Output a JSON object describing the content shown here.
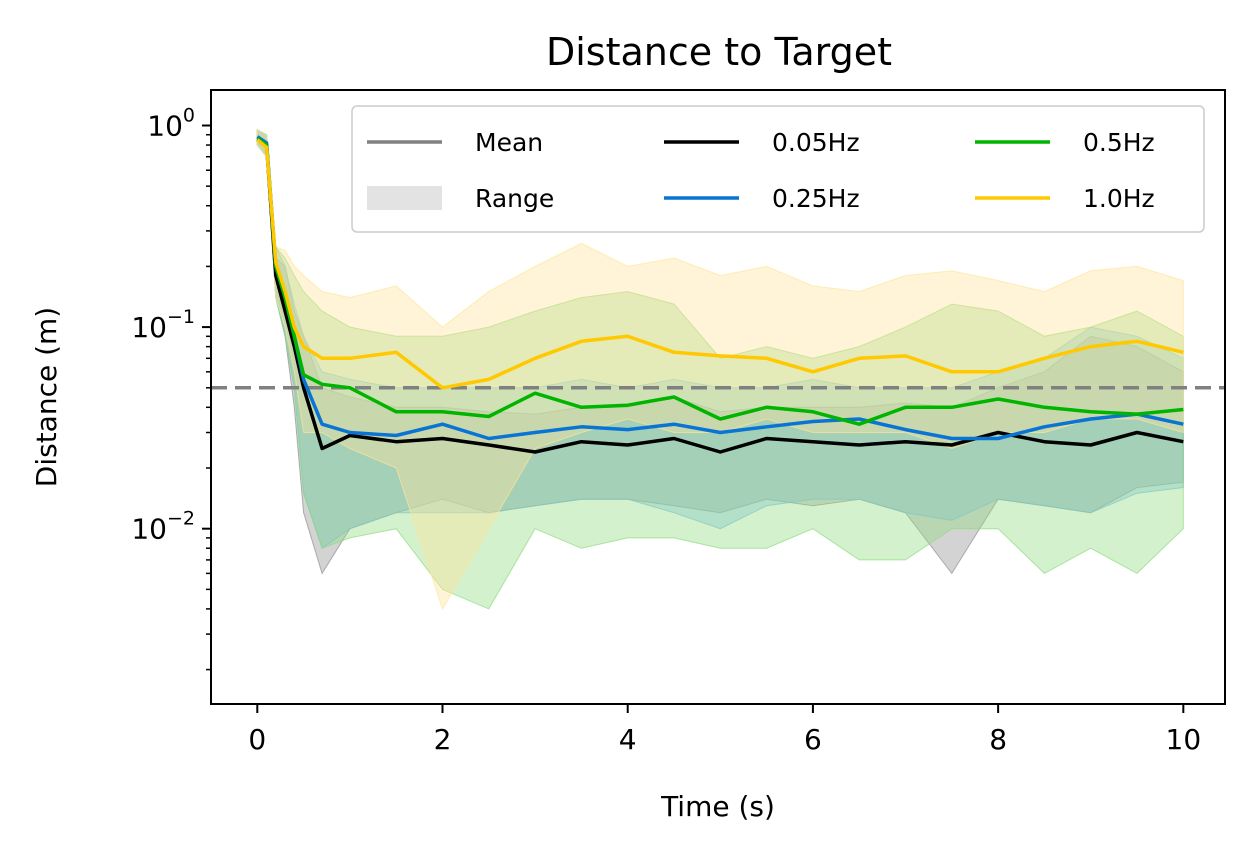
{
  "chart_data": {
    "type": "line",
    "title": "Distance to Target",
    "xlabel": "Time (s)",
    "ylabel": "Distance (m)",
    "xlim": [
      -0.5,
      10.45
    ],
    "ylim": [
      0.00135,
      1.5
    ],
    "yscale": "log",
    "grid": false,
    "legend_position": "top-right",
    "x_ticks": [
      0,
      2,
      4,
      6,
      8,
      10
    ],
    "y_ticks": [
      {
        "value": 1,
        "base": "10",
        "exp": "0"
      },
      {
        "value": 0.1,
        "base": "10",
        "exp": "−1"
      },
      {
        "value": 0.01,
        "base": "10",
        "exp": "−2"
      }
    ],
    "threshold": {
      "value": 0.05,
      "color": "#808080",
      "style": "dashed"
    },
    "legend": [
      {
        "label": "Mean",
        "kind": "line",
        "color": "#808080"
      },
      {
        "label": "Range",
        "kind": "patch",
        "color": "#e3e3e3"
      },
      {
        "label": "0.05Hz",
        "kind": "line",
        "color": "#000000"
      },
      {
        "label": "0.25Hz",
        "kind": "line",
        "color": "#0a74d4"
      },
      {
        "label": "0.5Hz",
        "kind": "line",
        "color": "#00b400"
      },
      {
        "label": "1.0Hz",
        "kind": "line",
        "color": "#ffc800"
      }
    ],
    "x": [
      0,
      0.1,
      0.2,
      0.3,
      0.4,
      0.5,
      0.7,
      1,
      1.5,
      2,
      2.5,
      3,
      3.5,
      4,
      4.5,
      5,
      5.5,
      6,
      6.5,
      7,
      7.5,
      8,
      8.5,
      9,
      9.5,
      10
    ],
    "series": [
      {
        "name": "0.05Hz",
        "color": "#000000",
        "fill": "#909090",
        "mean": [
          0.85,
          0.8,
          0.18,
          0.12,
          0.08,
          0.05,
          0.025,
          0.029,
          0.027,
          0.028,
          0.026,
          0.024,
          0.027,
          0.026,
          0.028,
          0.024,
          0.028,
          0.027,
          0.026,
          0.027,
          0.026,
          0.03,
          0.027,
          0.026,
          0.03,
          0.027
        ],
        "lo": [
          0.8,
          0.7,
          0.14,
          0.09,
          0.04,
          0.012,
          0.006,
          0.01,
          0.012,
          0.014,
          0.012,
          0.013,
          0.014,
          0.014,
          0.013,
          0.012,
          0.014,
          0.013,
          0.014,
          0.012,
          0.006,
          0.014,
          0.013,
          0.012,
          0.016,
          0.017
        ],
        "hi": [
          0.95,
          0.9,
          0.22,
          0.2,
          0.12,
          0.09,
          0.05,
          0.045,
          0.04,
          0.04,
          0.038,
          0.037,
          0.04,
          0.04,
          0.045,
          0.038,
          0.04,
          0.04,
          0.04,
          0.042,
          0.04,
          0.05,
          0.06,
          0.09,
          0.08,
          0.06
        ]
      },
      {
        "name": "0.25Hz",
        "color": "#0a74d4",
        "fill": "#7fb8ee",
        "mean": [
          0.88,
          0.82,
          0.2,
          0.14,
          0.09,
          0.055,
          0.033,
          0.03,
          0.029,
          0.033,
          0.028,
          0.03,
          0.032,
          0.031,
          0.033,
          0.03,
          0.032,
          0.034,
          0.035,
          0.031,
          0.028,
          0.028,
          0.032,
          0.035,
          0.037,
          0.033
        ],
        "lo": [
          0.8,
          0.7,
          0.14,
          0.09,
          0.05,
          0.015,
          0.008,
          0.01,
          0.012,
          0.012,
          0.012,
          0.013,
          0.014,
          0.014,
          0.012,
          0.01,
          0.013,
          0.014,
          0.014,
          0.012,
          0.011,
          0.014,
          0.013,
          0.012,
          0.015,
          0.016
        ],
        "hi": [
          0.95,
          0.9,
          0.25,
          0.2,
          0.13,
          0.09,
          0.06,
          0.055,
          0.05,
          0.05,
          0.05,
          0.05,
          0.055,
          0.05,
          0.055,
          0.05,
          0.05,
          0.055,
          0.05,
          0.05,
          0.05,
          0.06,
          0.07,
          0.1,
          0.09,
          0.07
        ]
      },
      {
        "name": "0.5Hz",
        "color": "#00b400",
        "fill": "#8fdc7f",
        "mean": [
          0.86,
          0.8,
          0.2,
          0.14,
          0.09,
          0.058,
          0.052,
          0.05,
          0.038,
          0.038,
          0.036,
          0.047,
          0.04,
          0.041,
          0.045,
          0.035,
          0.04,
          0.038,
          0.033,
          0.04,
          0.04,
          0.044,
          0.04,
          0.038,
          0.037,
          0.039
        ],
        "lo": [
          0.8,
          0.7,
          0.14,
          0.09,
          0.05,
          0.015,
          0.008,
          0.009,
          0.01,
          0.005,
          0.004,
          0.01,
          0.008,
          0.009,
          0.009,
          0.008,
          0.008,
          0.01,
          0.007,
          0.007,
          0.01,
          0.01,
          0.006,
          0.008,
          0.006,
          0.01
        ],
        "hi": [
          0.95,
          0.9,
          0.25,
          0.22,
          0.18,
          0.15,
          0.12,
          0.1,
          0.09,
          0.09,
          0.1,
          0.12,
          0.14,
          0.15,
          0.13,
          0.07,
          0.08,
          0.07,
          0.08,
          0.1,
          0.13,
          0.12,
          0.09,
          0.1,
          0.12,
          0.09
        ]
      },
      {
        "name": "1.0Hz",
        "color": "#ffc800",
        "fill": "#ffe49a",
        "mean": [
          0.85,
          0.78,
          0.21,
          0.15,
          0.1,
          0.08,
          0.07,
          0.07,
          0.075,
          0.05,
          0.055,
          0.07,
          0.085,
          0.09,
          0.075,
          0.072,
          0.07,
          0.06,
          0.07,
          0.072,
          0.06,
          0.06,
          0.07,
          0.08,
          0.085,
          0.075
        ],
        "lo": [
          0.8,
          0.7,
          0.14,
          0.1,
          0.06,
          0.03,
          0.03,
          0.025,
          0.02,
          0.004,
          0.01,
          0.025,
          0.03,
          0.035,
          0.03,
          0.03,
          0.035,
          0.03,
          0.03,
          0.03,
          0.025,
          0.03,
          0.03,
          0.035,
          0.035,
          0.03
        ],
        "hi": [
          0.95,
          0.9,
          0.25,
          0.24,
          0.2,
          0.18,
          0.15,
          0.14,
          0.16,
          0.1,
          0.15,
          0.2,
          0.26,
          0.2,
          0.22,
          0.18,
          0.2,
          0.16,
          0.15,
          0.18,
          0.19,
          0.17,
          0.15,
          0.19,
          0.2,
          0.17
        ]
      }
    ]
  }
}
